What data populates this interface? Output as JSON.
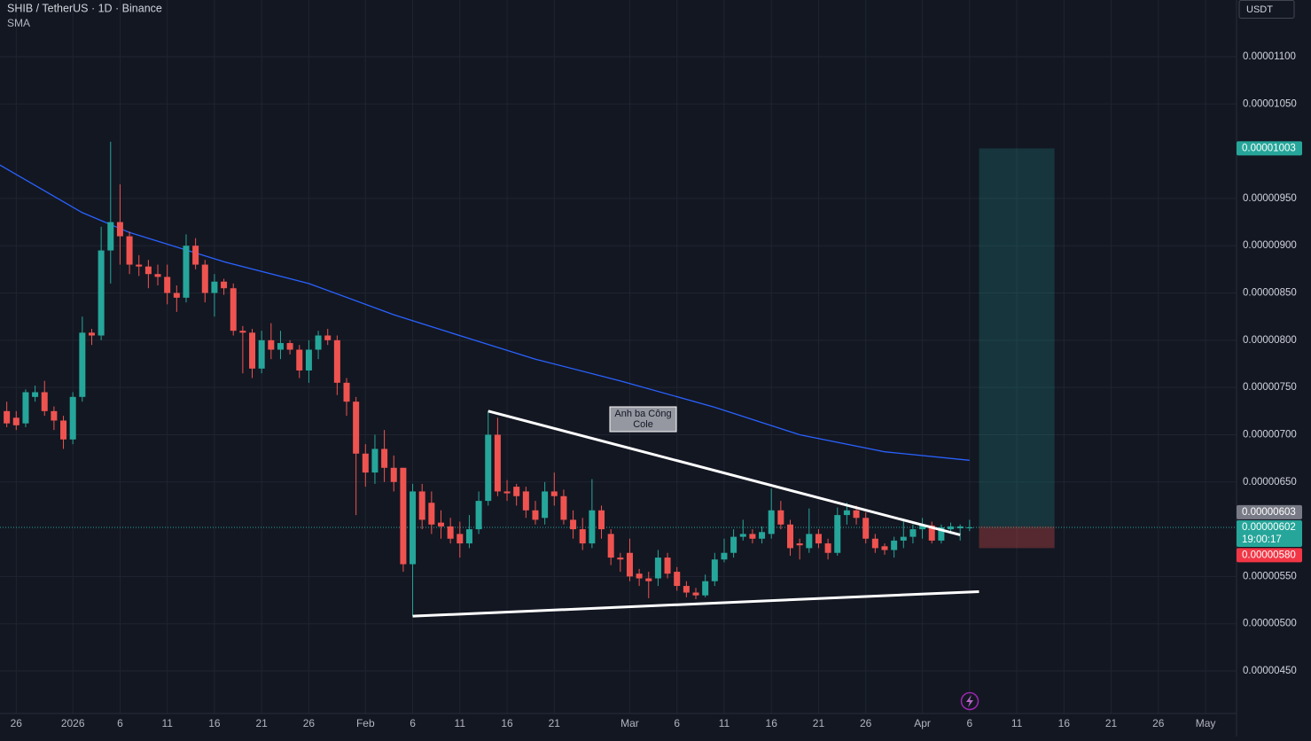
{
  "chart_data": {
    "type": "candlestick",
    "title": "SHIB / TetherUS · 1D · Binance",
    "currency": "USDT",
    "countdown": "19:00:17",
    "up_color": "#26a69a",
    "down_color": "#ef5350",
    "xlim": [
      "2025-12-24",
      "2026-05-04"
    ],
    "ylim": [
      4.05e-06,
      1.16e-05
    ],
    "grid": true,
    "xticks": [
      {
        "value": "2025-12-26",
        "label": "26"
      },
      {
        "value": "2026-01-01",
        "label": "2026"
      },
      {
        "value": "2026-01-06",
        "label": "6"
      },
      {
        "value": "2026-01-11",
        "label": "11"
      },
      {
        "value": "2026-01-16",
        "label": "16"
      },
      {
        "value": "2026-01-21",
        "label": "21"
      },
      {
        "value": "2026-01-26",
        "label": "26"
      },
      {
        "value": "2026-02-01",
        "label": "Feb"
      },
      {
        "value": "2026-02-06",
        "label": "6"
      },
      {
        "value": "2026-02-11",
        "label": "11"
      },
      {
        "value": "2026-02-16",
        "label": "16"
      },
      {
        "value": "2026-02-21",
        "label": "21"
      },
      {
        "value": "2026-03-01",
        "label": "Mar"
      },
      {
        "value": "2026-03-06",
        "label": "6"
      },
      {
        "value": "2026-03-11",
        "label": "11"
      },
      {
        "value": "2026-03-16",
        "label": "16"
      },
      {
        "value": "2026-03-21",
        "label": "21"
      },
      {
        "value": "2026-03-26",
        "label": "26"
      },
      {
        "value": "2026-04-01",
        "label": "Apr"
      },
      {
        "value": "2026-04-06",
        "label": "6"
      },
      {
        "value": "2026-04-11",
        "label": "11"
      },
      {
        "value": "2026-04-16",
        "label": "16"
      },
      {
        "value": "2026-04-21",
        "label": "21"
      },
      {
        "value": "2026-04-26",
        "label": "26"
      },
      {
        "value": "2026-05-01",
        "label": "May"
      }
    ],
    "yticks": [
      {
        "value": 4.5e-06,
        "label": "0.00000450"
      },
      {
        "value": 5e-06,
        "label": "0.00000500"
      },
      {
        "value": 5.5e-06,
        "label": "0.00000550"
      },
      {
        "value": 6.5e-06,
        "label": "0.00000650"
      },
      {
        "value": 7e-06,
        "label": "0.00000700"
      },
      {
        "value": 7.5e-06,
        "label": "0.00000750"
      },
      {
        "value": 8e-06,
        "label": "0.00000800"
      },
      {
        "value": 8.5e-06,
        "label": "0.00000850"
      },
      {
        "value": 9e-06,
        "label": "0.00000900"
      },
      {
        "value": 9.5e-06,
        "label": "0.00000950"
      },
      {
        "value": 1.05e-05,
        "label": "0.00001050"
      },
      {
        "value": 1.1e-05,
        "label": "0.00001100"
      }
    ],
    "x": [
      "2025-12-25",
      "2025-12-26",
      "2025-12-27",
      "2025-12-28",
      "2025-12-29",
      "2025-12-30",
      "2025-12-31",
      "2026-01-01",
      "2026-01-02",
      "2026-01-03",
      "2026-01-04",
      "2026-01-05",
      "2026-01-06",
      "2026-01-07",
      "2026-01-08",
      "2026-01-09",
      "2026-01-10",
      "2026-01-11",
      "2026-01-12",
      "2026-01-13",
      "2026-01-14",
      "2026-01-15",
      "2026-01-16",
      "2026-01-17",
      "2026-01-18",
      "2026-01-19",
      "2026-01-20",
      "2026-01-21",
      "2026-01-22",
      "2026-01-23",
      "2026-01-24",
      "2026-01-25",
      "2026-01-26",
      "2026-01-27",
      "2026-01-28",
      "2026-01-29",
      "2026-01-30",
      "2026-01-31",
      "2026-02-01",
      "2026-02-02",
      "2026-02-03",
      "2026-02-04",
      "2026-02-05",
      "2026-02-06",
      "2026-02-07",
      "2026-02-08",
      "2026-02-09",
      "2026-02-10",
      "2026-02-11",
      "2026-02-12",
      "2026-02-13",
      "2026-02-14",
      "2026-02-15",
      "2026-02-16",
      "2026-02-17",
      "2026-02-18",
      "2026-02-19",
      "2026-02-20",
      "2026-02-21",
      "2026-02-22",
      "2026-02-23",
      "2026-02-24",
      "2026-02-25",
      "2026-02-26",
      "2026-02-27",
      "2026-02-28",
      "2026-03-01",
      "2026-03-02",
      "2026-03-03",
      "2026-03-04",
      "2026-03-05",
      "2026-03-06",
      "2026-03-07",
      "2026-03-08",
      "2026-03-09",
      "2026-03-10",
      "2026-03-11",
      "2026-03-12",
      "2026-03-13",
      "2026-03-14",
      "2026-03-15",
      "2026-03-16",
      "2026-03-17",
      "2026-03-18",
      "2026-03-19",
      "2026-03-20",
      "2026-03-21",
      "2026-03-22",
      "2026-03-23",
      "2026-03-24",
      "2026-03-25",
      "2026-03-26",
      "2026-03-27",
      "2026-03-28",
      "2026-03-29",
      "2026-03-30",
      "2026-03-31",
      "2026-04-01",
      "2026-04-02",
      "2026-04-03",
      "2026-04-04",
      "2026-04-05",
      "2026-04-06"
    ],
    "open": [
      7.25e-06,
      7.18e-06,
      7.12e-06,
      7.4e-06,
      7.45e-06,
      7.25e-06,
      7.15e-06,
      6.95e-06,
      7.4e-06,
      8.08e-06,
      8.05e-06,
      8.95e-06,
      9.25e-06,
      9.1e-06,
      8.8e-06,
      8.78e-06,
      8.7e-06,
      8.67e-06,
      8.5e-06,
      8.45e-06,
      9e-06,
      8.8e-06,
      8.5e-06,
      8.62e-06,
      8.55e-06,
      8.1e-06,
      8.08e-06,
      7.7e-06,
      8e-06,
      7.9e-06,
      7.97e-06,
      7.9e-06,
      7.68e-06,
      7.9e-06,
      8.05e-06,
      8e-06,
      7.55e-06,
      7.35e-06,
      6.8e-06,
      6.6e-06,
      6.85e-06,
      6.65e-06,
      6.65e-06,
      5.63e-06,
      6.4e-06,
      6.28e-06,
      6.07e-06,
      6.03e-06,
      5.95e-06,
      5.85e-06,
      6e-06,
      6.3e-06,
      7e-06,
      6.4e-06,
      6.45e-06,
      6.4e-06,
      6.2e-06,
      6.12e-06,
      6.4e-06,
      6.35e-06,
      6.1e-06,
      6e-06,
      5.85e-06,
      6.2e-06,
      5.95e-06,
      5.7e-06,
      5.75e-06,
      5.53e-06,
      5.48e-06,
      5.48e-06,
      5.7e-06,
      5.55e-06,
      5.4e-06,
      5.33e-06,
      5.3e-06,
      5.45e-06,
      5.68e-06,
      5.75e-06,
      5.92e-06,
      5.95e-06,
      5.9e-06,
      5.95e-06,
      6.2e-06,
      6.05e-06,
      5.85e-06,
      5.8e-06,
      5.95e-06,
      5.85e-06,
      5.75e-06,
      6.15e-06,
      6.2e-06,
      6.12e-06,
      5.9e-06,
      5.82e-06,
      5.78e-06,
      5.88e-06,
      5.92e-06,
      6e-06,
      6.04e-06,
      5.88e-06,
      6e-06,
      6.01e-06,
      6.02e-06
    ],
    "high": [
      7.35e-06,
      7.25e-06,
      7.48e-06,
      7.52e-06,
      7.57e-06,
      7.3e-06,
      7.2e-06,
      7.45e-06,
      8.25e-06,
      8.12e-06,
      9.2e-06,
      1.01e-05,
      9.65e-06,
      9.15e-06,
      8.9e-06,
      8.85e-06,
      8.8e-06,
      8.8e-06,
      8.58e-06,
      9.12e-06,
      9.08e-06,
      8.85e-06,
      8.7e-06,
      8.65e-06,
      8.6e-06,
      8.15e-06,
      8.12e-06,
      8.1e-06,
      8.18e-06,
      8.1e-06,
      8e-06,
      7.95e-06,
      8e-06,
      8.1e-06,
      8.12e-06,
      8.05e-06,
      7.6e-06,
      7.4e-06,
      6.9e-06,
      7e-06,
      7.05e-06,
      6.78e-06,
      6.65e-06,
      6.48e-06,
      6.48e-06,
      6.4e-06,
      6.2e-06,
      6.12e-06,
      6.08e-06,
      6.15e-06,
      6.4e-06,
      7.25e-06,
      7.18e-06,
      6.52e-06,
      6.48e-06,
      6.45e-06,
      6.3e-06,
      6.5e-06,
      6.6e-06,
      6.42e-06,
      6.2e-06,
      6.12e-06,
      6.53e-06,
      6.25e-06,
      6e-06,
      5.75e-06,
      5.9e-06,
      5.58e-06,
      5.55e-06,
      5.78e-06,
      5.75e-06,
      5.6e-06,
      5.45e-06,
      5.38e-06,
      5.52e-06,
      5.75e-06,
      5.9e-06,
      6e-06,
      6.1e-06,
      6e-06,
      6.03e-06,
      6.43e-06,
      6.3e-06,
      6.1e-06,
      5.9e-06,
      6.22e-06,
      6e-06,
      5.9e-06,
      6.23e-06,
      6.28e-06,
      6.25e-06,
      6.18e-06,
      5.95e-06,
      5.85e-06,
      5.92e-06,
      6.1e-06,
      6.05e-06,
      6.12e-06,
      6.08e-06,
      6.05e-06,
      6.07e-06,
      6.05e-06,
      6.1e-06
    ],
    "low": [
      7.08e-06,
      7.05e-06,
      7.08e-06,
      7.35e-06,
      7.2e-06,
      7.05e-06,
      6.85e-06,
      6.9e-06,
      7.35e-06,
      7.95e-06,
      8e-06,
      8.6e-06,
      8.8e-06,
      8.7e-06,
      8.68e-06,
      8.55e-06,
      8.58e-06,
      8.38e-06,
      8.3e-06,
      8.4e-06,
      8.75e-06,
      8.4e-06,
      8.25e-06,
      8.48e-06,
      8.05e-06,
      7.65e-06,
      7.6e-06,
      7.65e-06,
      7.8e-06,
      7.8e-06,
      7.85e-06,
      7.6e-06,
      7.55e-06,
      7.8e-06,
      7.95e-06,
      7.42e-06,
      7.2e-06,
      6.15e-06,
      6.45e-06,
      6.48e-06,
      6.5e-06,
      6.4e-06,
      5.55e-06,
      5.08e-06,
      6e-06,
      5.95e-06,
      5.9e-06,
      5.85e-06,
      5.7e-06,
      5.8e-06,
      5.95e-06,
      6.25e-06,
      6.35e-06,
      6.3e-06,
      6.25e-06,
      6.12e-06,
      6.05e-06,
      6.05e-06,
      6.25e-06,
      6.05e-06,
      5.9e-06,
      5.78e-06,
      5.8e-06,
      5.9e-06,
      5.62e-06,
      5.55e-06,
      5.45e-06,
      5.4e-06,
      5.27e-06,
      5.4e-06,
      5.48e-06,
      5.35e-06,
      5.28e-06,
      5.26e-06,
      5.28e-06,
      5.4e-06,
      5.65e-06,
      5.7e-06,
      5.88e-06,
      5.85e-06,
      5.85e-06,
      5.9e-06,
      6e-06,
      5.72e-06,
      5.68e-06,
      5.75e-06,
      5.8e-06,
      5.68e-06,
      5.72e-06,
      6.05e-06,
      6.05e-06,
      5.85e-06,
      5.75e-06,
      5.73e-06,
      5.7e-06,
      5.8e-06,
      5.85e-06,
      5.9e-06,
      5.85e-06,
      5.85e-06,
      5.95e-06,
      5.88e-06,
      5.98e-06
    ],
    "close": [
      7.12e-06,
      7.1e-06,
      7.45e-06,
      7.45e-06,
      7.25e-06,
      7.15e-06,
      6.95e-06,
      7.4e-06,
      8.08e-06,
      8.05e-06,
      8.95e-06,
      9.25e-06,
      9.1e-06,
      8.8e-06,
      8.78e-06,
      8.7e-06,
      8.67e-06,
      8.5e-06,
      8.45e-06,
      9e-06,
      8.8e-06,
      8.5e-06,
      8.62e-06,
      8.55e-06,
      8.1e-06,
      8.08e-06,
      7.7e-06,
      8e-06,
      7.9e-06,
      7.97e-06,
      7.9e-06,
      7.68e-06,
      7.9e-06,
      8.05e-06,
      8e-06,
      7.55e-06,
      7.35e-06,
      6.8e-06,
      6.6e-06,
      6.85e-06,
      6.65e-06,
      6.5e-06,
      5.63e-06,
      6.4e-06,
      6.1e-06,
      6.05e-06,
      6.03e-06,
      5.9e-06,
      5.85e-06,
      6e-06,
      6.3e-06,
      7e-06,
      6.4e-06,
      6.38e-06,
      6.35e-06,
      6.2e-06,
      6.1e-06,
      6.4e-06,
      6.35e-06,
      6.1e-06,
      6e-06,
      5.85e-06,
      6.2e-06,
      6e-06,
      5.7e-06,
      5.68e-06,
      5.5e-06,
      5.48e-06,
      5.45e-06,
      5.7e-06,
      5.53e-06,
      5.4e-06,
      5.33e-06,
      5.3e-06,
      5.45e-06,
      5.68e-06,
      5.75e-06,
      5.92e-06,
      5.95e-06,
      5.9e-06,
      5.97e-06,
      6.2e-06,
      6.05e-06,
      5.8e-06,
      5.83e-06,
      5.95e-06,
      5.85e-06,
      5.75e-06,
      6.15e-06,
      6.2e-06,
      6.12e-06,
      5.9e-06,
      5.8e-06,
      5.78e-06,
      5.88e-06,
      5.92e-06,
      6e-06,
      6.04e-06,
      5.88e-06,
      6.02e-06,
      6.03e-06,
      6.03e-06,
      6.02e-06
    ],
    "last_price": {
      "value": 6.02e-06,
      "label": "0.00000602"
    },
    "sma": {
      "name": "SMA",
      "color": "#2962ff",
      "x": [
        "2025-12-24",
        "2026-01-02",
        "2026-01-07",
        "2026-01-17",
        "2026-01-26",
        "2026-02-04",
        "2026-02-10",
        "2026-02-19",
        "2026-02-28",
        "2026-03-10",
        "2026-03-19",
        "2026-03-28",
        "2026-04-06"
      ],
      "values": [
        9.87e-06,
        9.35e-06,
        9.14e-06,
        8.83e-06,
        8.6e-06,
        8.27e-06,
        8.08e-06,
        7.8e-06,
        7.57e-06,
        7.29e-06,
        7e-06,
        6.82e-06,
        6.73e-06
      ]
    },
    "trendlines": [
      {
        "x": [
          "2026-02-14",
          "2026-04-05"
        ],
        "values": [
          7.25e-06,
          5.94e-06
        ]
      },
      {
        "x": [
          "2026-02-06",
          "2026-04-07"
        ],
        "values": [
          5.08e-06,
          5.34e-06
        ]
      }
    ],
    "annotation": {
      "lines": [
        "Anh ba Công",
        "Cole"
      ]
    },
    "position": {
      "x": [
        "2026-04-07",
        "2026-04-15"
      ],
      "target": {
        "value": 1.003e-05,
        "label": "0.00001003"
      },
      "entry": {
        "value": 6.03e-06,
        "label": "0.00000603"
      },
      "stop": {
        "value": 5.8e-06,
        "label": "0.00000580"
      }
    }
  }
}
